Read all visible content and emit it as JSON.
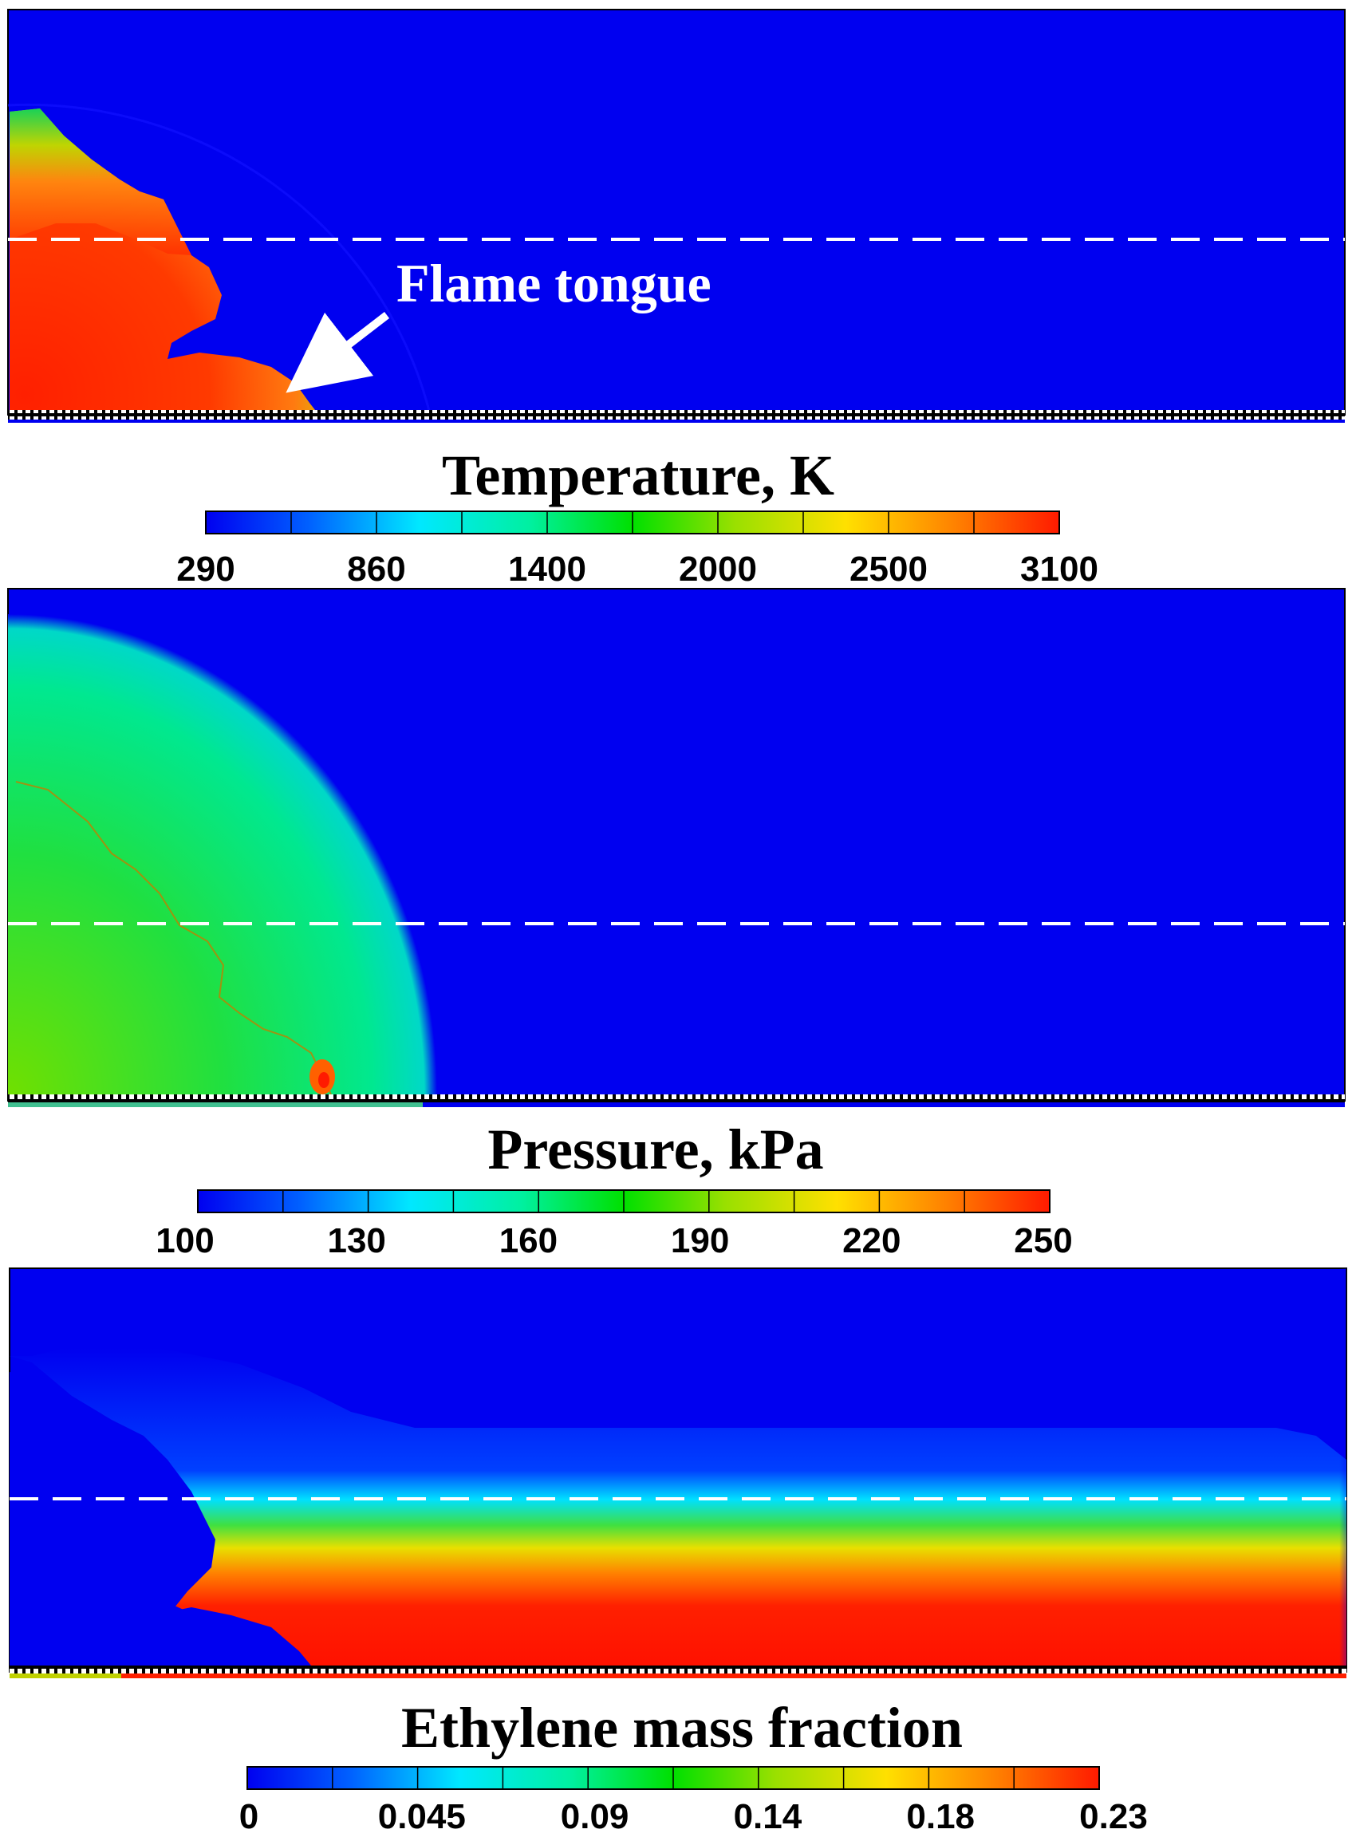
{
  "panels": [
    {
      "id": "temperature",
      "annotation": "Flame tongue",
      "colorbar": {
        "title": "Temperature, K",
        "ticks": [
          "290",
          "860",
          "1400",
          "2000",
          "2500",
          "3100"
        ],
        "levels": 10
      }
    },
    {
      "id": "pressure",
      "colorbar": {
        "title": "Pressure, kPa",
        "ticks": [
          "100",
          "130",
          "160",
          "190",
          "220",
          "250"
        ],
        "levels": 10
      }
    },
    {
      "id": "ethylene",
      "colorbar": {
        "title": "Ethylene mass fraction",
        "ticks": [
          "0",
          "0.045",
          "0.09",
          "0.14",
          "0.18",
          "0.23"
        ],
        "levels": 10
      }
    }
  ],
  "colors": {
    "background_field": "#0000f0",
    "hot": "#ff2a00",
    "mid": "#40e040",
    "dashed_line": "#ffffff"
  }
}
